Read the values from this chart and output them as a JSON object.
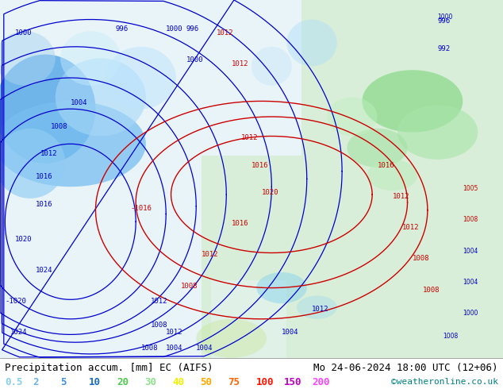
{
  "title_left": "Precipitation accum. [mm] EC (AIFS)",
  "title_right": "Mo 24-06-2024 18:00 UTC (12+06)",
  "credit": "©weatheronline.co.uk",
  "legend_values": [
    "0.5",
    "2",
    "5",
    "10",
    "20",
    "30",
    "40",
    "50",
    "75",
    "100",
    "150",
    "200"
  ],
  "legend_colors": [
    "#87ceeb",
    "#6ab4e8",
    "#4090d8",
    "#1a6cc8",
    "#50c850",
    "#90e090",
    "#f0f000",
    "#ffa800",
    "#ff6400",
    "#ff1400",
    "#c000c0",
    "#ff44ff"
  ],
  "title_fontsize": 9,
  "legend_fontsize": 9,
  "credit_fontsize": 8,
  "pressure_blue": "#0000cd",
  "pressure_red": "#cc0000"
}
